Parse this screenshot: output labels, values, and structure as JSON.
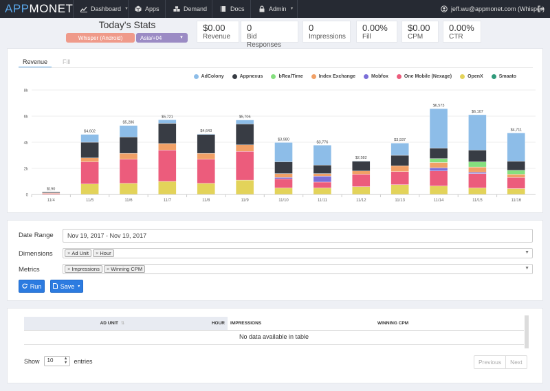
{
  "navbar": {
    "brand_part1": "APP",
    "brand_part2": "MONET",
    "items": [
      {
        "label": "Dashboard",
        "icon": "chart-icon",
        "dropdown": true
      },
      {
        "label": "Apps",
        "icon": "cube-icon",
        "dropdown": false
      },
      {
        "label": "Demand",
        "icon": "cubes-icon",
        "dropdown": false
      },
      {
        "label": "Docs",
        "icon": "book-icon",
        "dropdown": false
      },
      {
        "label": "Admin",
        "icon": "lock-icon",
        "dropdown": true
      }
    ],
    "user": "jeff.wu@appmonet.com (Whisper)",
    "user_icon": "user-circle-icon",
    "logout_icon": "sign-out-icon"
  },
  "stats": {
    "title": "Today's Stats",
    "app_select": "Whisper (Android)",
    "timezone_select": "Asia/+04",
    "cards": [
      {
        "value": "$0.00",
        "label": "Revenue"
      },
      {
        "value": "0",
        "label": "Bid Responses"
      },
      {
        "value": "0",
        "label": "Impressions"
      },
      {
        "value": "0.00%",
        "label": "Fill"
      },
      {
        "value": "$0.00",
        "label": "CPM"
      },
      {
        "value": "0.00%",
        "label": "CTR"
      }
    ]
  },
  "chart_tabs": {
    "active": "Revenue",
    "inactive": "Fill"
  },
  "chart_data": {
    "type": "bar",
    "stacked": true,
    "categories": [
      "11/4",
      "11/5",
      "11/6",
      "11/7",
      "11/8",
      "11/9",
      "11/10",
      "11/11",
      "11/12",
      "11/13",
      "11/14",
      "11/15",
      "11/16"
    ],
    "totals": [
      190,
      4602,
      5286,
      5721,
      4643,
      5706,
      3980,
      3776,
      2582,
      3937,
      6573,
      6107,
      4711
    ],
    "total_labels": [
      "$190",
      "$4,602",
      "$5,286",
      "$5,721",
      "$4,643",
      "$5,706",
      "$3,980",
      "$3,776",
      "$2,582",
      "$3,937",
      "$6,573",
      "$6,107",
      "$4,711"
    ],
    "y_ticks": [
      0,
      2000,
      4000,
      6000,
      8000
    ],
    "y_tick_labels": [
      "0",
      "2k",
      "4k",
      "6k",
      "8k"
    ],
    "ylim": [
      0,
      8000
    ],
    "legend_position": "top-right",
    "series": [
      {
        "name": "OpenX",
        "color": "#e3d35a",
        "values": [
          0,
          800,
          850,
          1000,
          850,
          1100,
          500,
          500,
          600,
          750,
          650,
          500,
          450
        ]
      },
      {
        "name": "One Mobile (Nexage)",
        "color": "#ec5c7c",
        "values": [
          80,
          1700,
          1850,
          2400,
          1850,
          2200,
          700,
          450,
          950,
          1000,
          1150,
          1100,
          850
        ]
      },
      {
        "name": "Mobfox",
        "color": "#7b6fd8",
        "values": [
          0,
          0,
          0,
          0,
          0,
          0,
          100,
          450,
          0,
          0,
          250,
          100,
          0
        ]
      },
      {
        "name": "Index Exchange",
        "color": "#f1a066",
        "values": [
          40,
          300,
          450,
          500,
          450,
          500,
          300,
          200,
          250,
          450,
          400,
          400,
          250
        ]
      },
      {
        "name": "bRealTime",
        "color": "#85df7e",
        "values": [
          0,
          0,
          0,
          0,
          0,
          0,
          0,
          0,
          0,
          0,
          300,
          400,
          300
        ]
      },
      {
        "name": "Appnexus",
        "color": "#383c44",
        "values": [
          70,
          1200,
          1250,
          1550,
          1450,
          1600,
          900,
          650,
          750,
          800,
          800,
          900,
          700
        ]
      },
      {
        "name": "AdColony",
        "color": "#8dbde8",
        "values": [
          0,
          602,
          886,
          271,
          43,
          306,
          1480,
          1526,
          32,
          937,
          3023,
          2707,
          2161
        ]
      },
      {
        "name": "Smaato",
        "color": "#2f9a7a",
        "values": [
          0,
          0,
          0,
          0,
          0,
          0,
          0,
          0,
          0,
          0,
          0,
          0,
          0
        ]
      }
    ]
  },
  "legend_order": [
    "AdColony",
    "Appnexus",
    "bRealTime",
    "Index Exchange",
    "Mobfox",
    "One Mobile (Nexage)",
    "OpenX",
    "Smaato"
  ],
  "filters": {
    "date_range_label": "Date Range",
    "date_range_value": "Nov 19, 2017 - Nov 19, 2017",
    "dimensions_label": "Dimensions",
    "dimensions": [
      "Ad Unit",
      "Hour"
    ],
    "metrics_label": "Metrics",
    "metrics": [
      "Impressions",
      "Winning CPM"
    ],
    "run_button": "Run",
    "save_button": "Save"
  },
  "table": {
    "headers": [
      "AD UNIT",
      "HOUR",
      "IMPRESSIONS",
      "WINNING CPM"
    ],
    "empty_message": "No data available in table",
    "show_label": "Show",
    "entries_value": "10",
    "entries_label": "entries",
    "previous": "Previous",
    "next": "Next"
  }
}
